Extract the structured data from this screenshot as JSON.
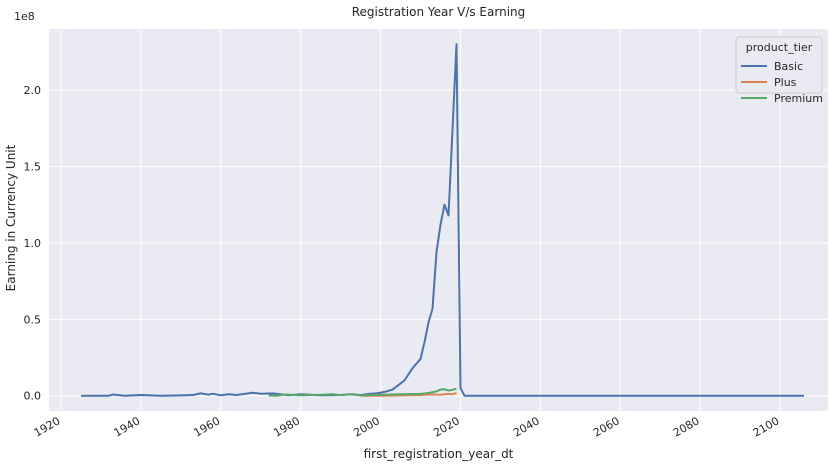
{
  "chart_data": {
    "type": "line",
    "title": "Registration Year V/s Earning",
    "xlabel": "first_registration_year_dt",
    "ylabel": "Earning in Currency Unit",
    "y_offset_label": "1e8",
    "xlim": [
      1917,
      2112
    ],
    "ylim": [
      -10000000,
      240000000
    ],
    "x_ticks": [
      1920,
      1940,
      1960,
      1980,
      2000,
      2020,
      2040,
      2060,
      2080,
      2100
    ],
    "x_tick_labels": [
      "1920",
      "1940",
      "1960",
      "1980",
      "2000",
      "2020",
      "2040",
      "2060",
      "2080",
      "2100"
    ],
    "y_ticks": [
      0,
      50000000,
      100000000,
      150000000,
      200000000
    ],
    "y_tick_labels": [
      "0.0",
      "0.5",
      "1.0",
      "1.5",
      "2.0"
    ],
    "grid": true,
    "legend_title": "product_tier",
    "legend_position": "top-right",
    "series": [
      {
        "name": "Basic",
        "color": "#4c72b0",
        "x": [
          1925,
          1932,
          1933,
          1936,
          1940,
          1945,
          1950,
          1953,
          1955,
          1957,
          1958,
          1960,
          1962,
          1964,
          1966,
          1968,
          1970,
          1973,
          1975,
          1977,
          1980,
          1985,
          1990,
          1993,
          1995,
          1997,
          1999,
          2001,
          2003,
          2006,
          2008,
          2010,
          2011,
          2012,
          2013,
          2014,
          2015,
          2016,
          2017,
          2019,
          2020,
          2021,
          2022,
          2030,
          2060,
          2106
        ],
        "y": [
          0,
          0,
          800000,
          0,
          500000,
          0,
          200000,
          500000,
          1500000,
          700000,
          1300000,
          300000,
          1000000,
          500000,
          1200000,
          2000000,
          1300000,
          1500000,
          1000000,
          300000,
          1000000,
          300000,
          500000,
          1000000,
          400000,
          1200000,
          1500000,
          2500000,
          4000000,
          10000000,
          18000000,
          24000000,
          35000000,
          48000000,
          57000000,
          94000000,
          112000000,
          125000000,
          118000000,
          230000000,
          5000000,
          0,
          0,
          0,
          0,
          0
        ]
      },
      {
        "name": "Plus",
        "color": "#dd8452",
        "x": [
          1995,
          2000,
          2005,
          2010,
          2013,
          2015,
          2017,
          2018,
          2019
        ],
        "y": [
          0,
          0,
          200000,
          500000,
          800000,
          600000,
          1200000,
          900000,
          1800000
        ]
      },
      {
        "name": "Premium",
        "color": "#55a868",
        "x": [
          1972,
          1974,
          1976,
          1980,
          1985,
          1988,
          1990,
          1992,
          1995,
          1998,
          2000,
          2005,
          2010,
          2012,
          2014,
          2015,
          2016,
          2017,
          2018,
          2019
        ],
        "y": [
          200000,
          0,
          800000,
          300000,
          600000,
          1000000,
          400000,
          900000,
          300000,
          500000,
          700000,
          900000,
          1200000,
          1800000,
          2800000,
          4000000,
          4200000,
          3400000,
          3900000,
          4600000
        ]
      }
    ]
  }
}
